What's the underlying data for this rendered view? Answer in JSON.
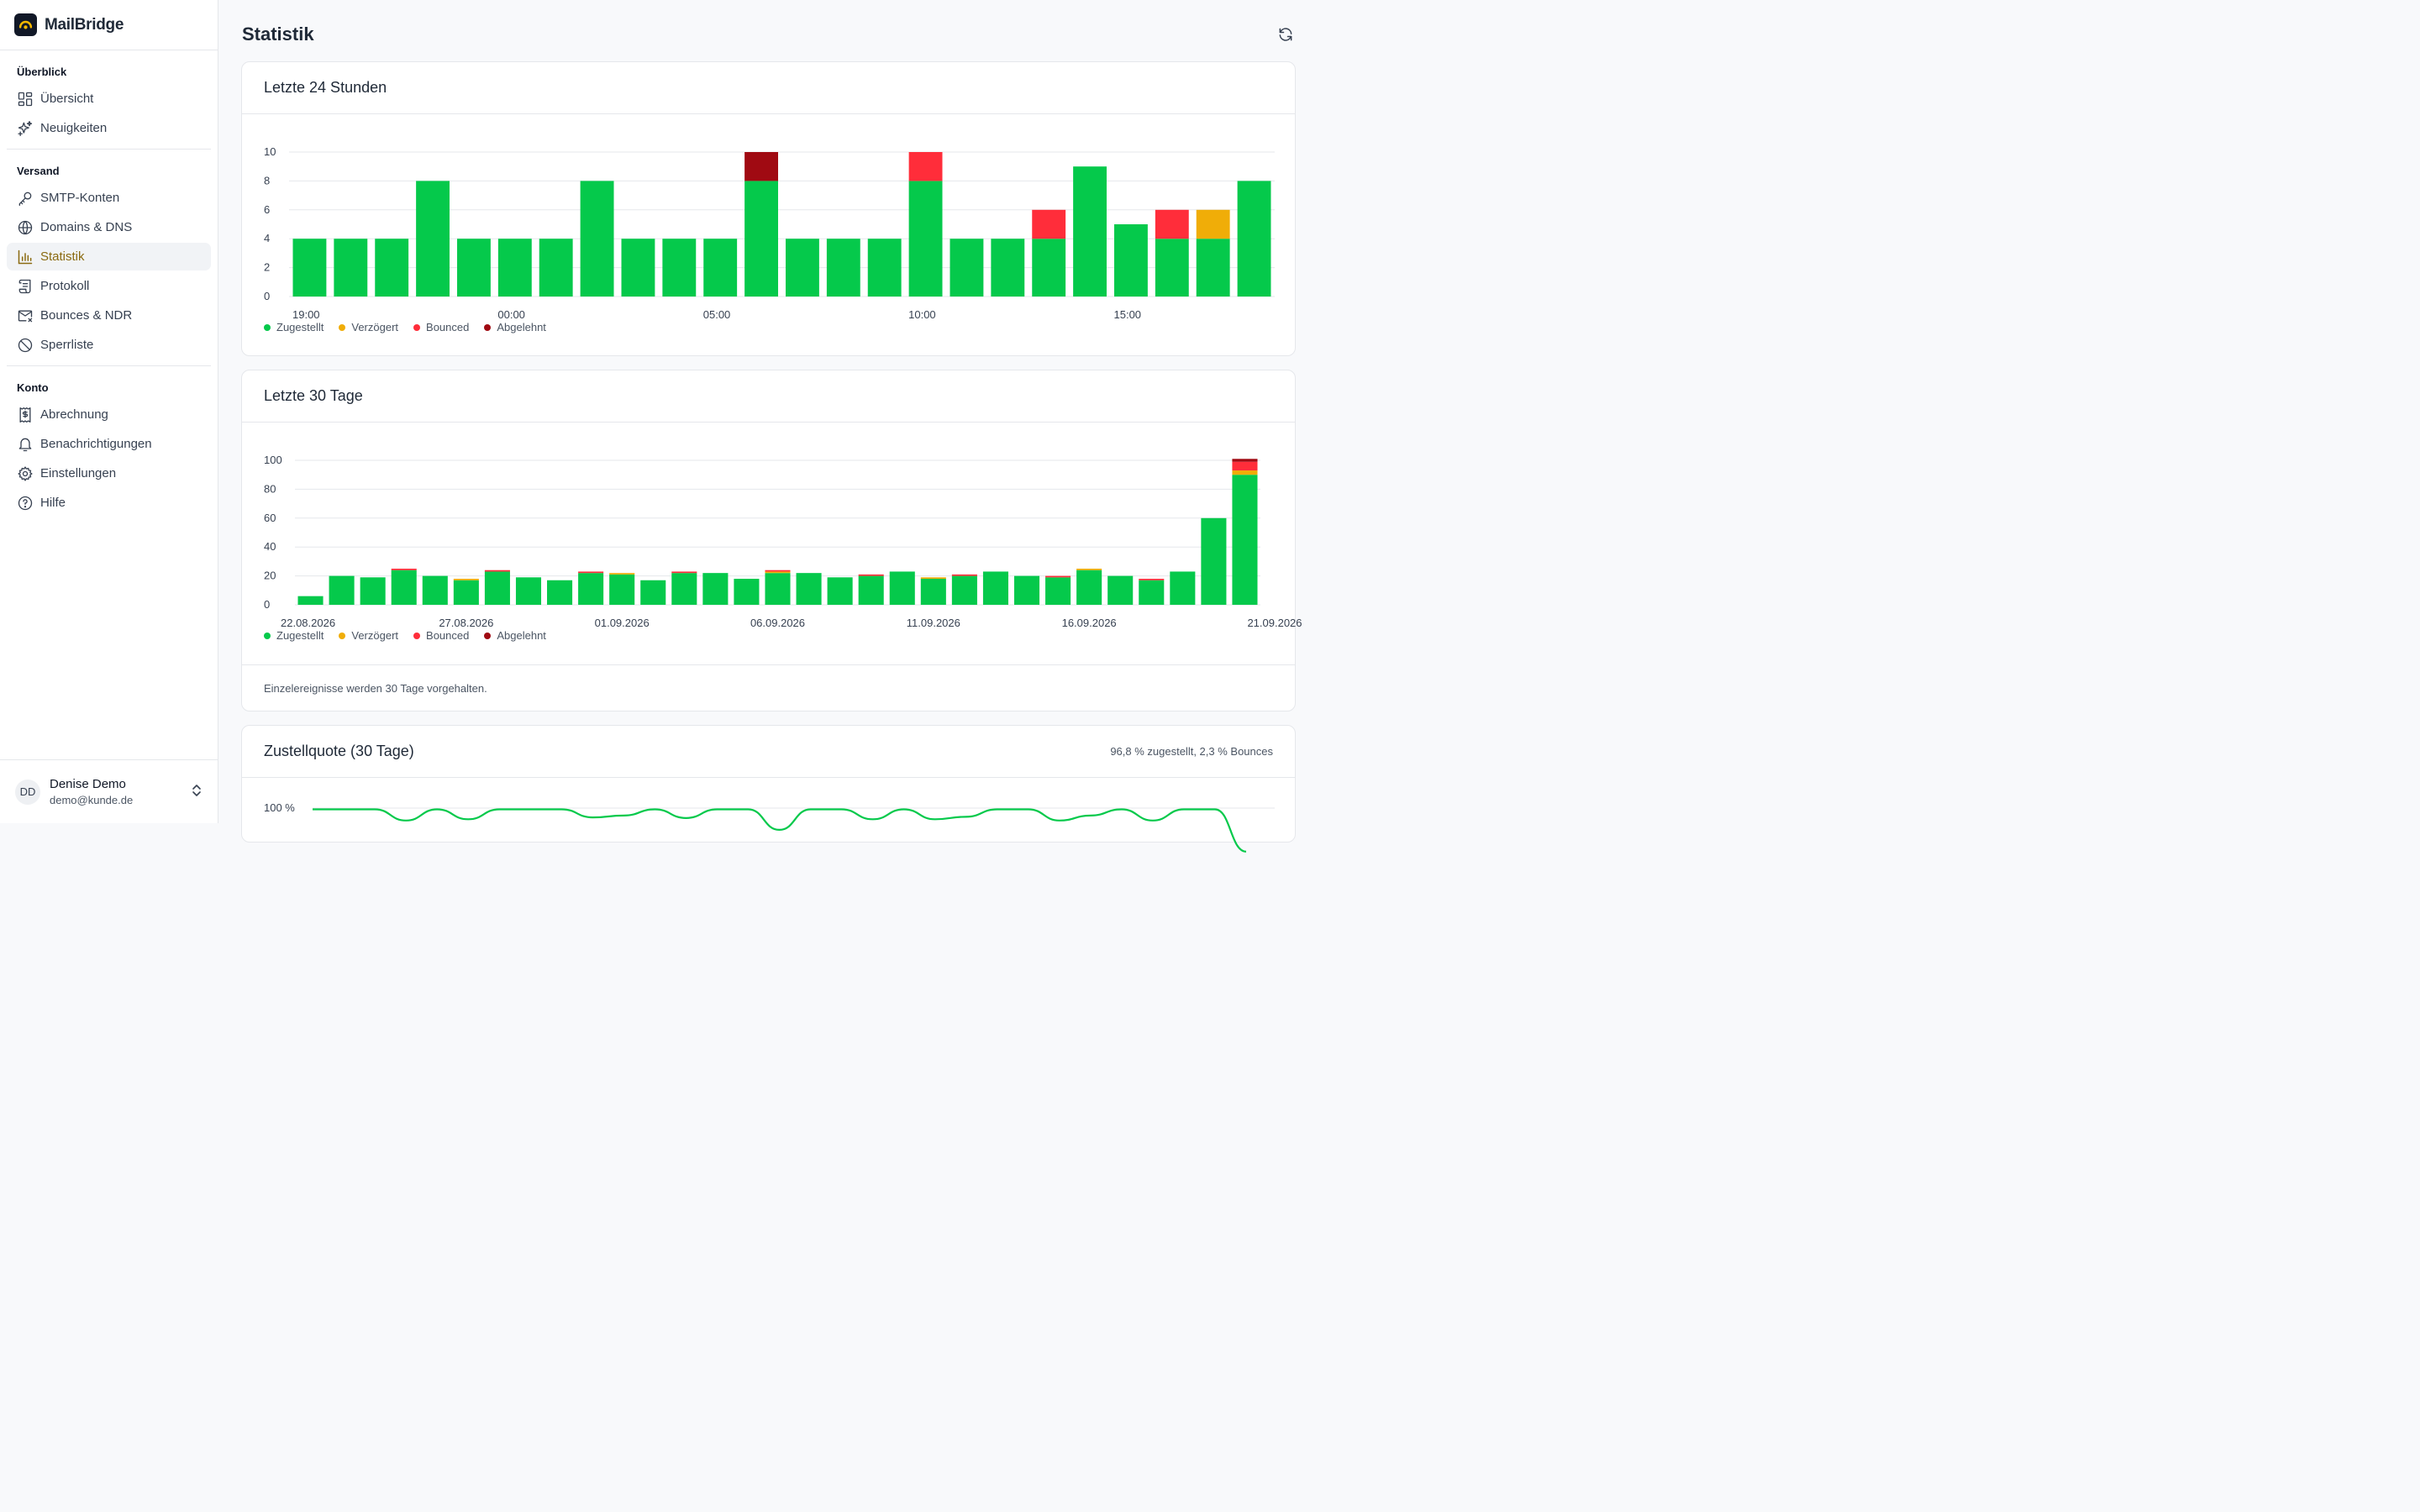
{
  "brand": {
    "name": "MailBridge"
  },
  "sidebar": {
    "sections": [
      {
        "heading": "Überblick",
        "items": [
          {
            "label": "Übersicht",
            "icon": "dashboard-icon"
          },
          {
            "label": "Neuigkeiten",
            "icon": "sparkles-icon"
          }
        ]
      },
      {
        "heading": "Versand",
        "items": [
          {
            "label": "SMTP-Konten",
            "icon": "key-icon"
          },
          {
            "label": "Domains & DNS",
            "icon": "globe-icon"
          },
          {
            "label": "Statistik",
            "icon": "bar-chart-icon",
            "active": true
          },
          {
            "label": "Protokoll",
            "icon": "scroll-icon"
          },
          {
            "label": "Bounces & NDR",
            "icon": "mail-x-icon"
          },
          {
            "label": "Sperrliste",
            "icon": "ban-icon"
          }
        ]
      },
      {
        "heading": "Konto",
        "items": [
          {
            "label": "Abrechnung",
            "icon": "receipt-icon"
          },
          {
            "label": "Benachrichtigungen",
            "icon": "bell-icon"
          },
          {
            "label": "Einstellungen",
            "icon": "gear-icon"
          },
          {
            "label": "Hilfe",
            "icon": "help-circle-icon"
          }
        ]
      }
    ]
  },
  "user": {
    "initials": "DD",
    "name": "Denise Demo",
    "email": "demo@kunde.de"
  },
  "page": {
    "title": "Statistik"
  },
  "colors": {
    "delivered": "#05c94b",
    "delayed": "#f0ad08",
    "bounced": "#ff2d3a",
    "rejected": "#a00a12",
    "accent": "#8a6a10"
  },
  "legend": [
    "Zugestellt",
    "Verzögert",
    "Bounced",
    "Abgelehnt"
  ],
  "cards": {
    "hourly": {
      "title": "Letzte 24 Stunden"
    },
    "daily": {
      "title": "Letzte 30 Tage",
      "footer": "Einzelereignisse werden 30 Tage vorgehalten."
    },
    "rate": {
      "title": "Zustellquote (30 Tage)",
      "summary": "96,8 % zugestellt, 2,3 % Bounces"
    }
  },
  "chart_data": [
    {
      "type": "bar",
      "stacked": true,
      "title": "Letzte 24 Stunden",
      "yticks": [
        0,
        2,
        4,
        6,
        8,
        10
      ],
      "ylim": [
        0,
        10
      ],
      "xtick_labels": [
        "19:00",
        "00:00",
        "05:00",
        "10:00",
        "15:00"
      ],
      "xtick_positions": [
        0,
        5,
        10,
        15,
        20
      ],
      "series": [
        {
          "name": "Zugestellt",
          "values": [
            4,
            4,
            4,
            8,
            4,
            4,
            4,
            8,
            4,
            4,
            4,
            8,
            4,
            4,
            4,
            8,
            4,
            4,
            4,
            9,
            5,
            4,
            4,
            8
          ]
        },
        {
          "name": "Verzögert",
          "values": [
            0,
            0,
            0,
            0,
            0,
            0,
            0,
            0,
            0,
            0,
            0,
            0,
            0,
            0,
            0,
            0,
            0,
            0,
            0,
            0,
            0,
            0,
            2,
            0
          ]
        },
        {
          "name": "Bounced",
          "values": [
            0,
            0,
            0,
            0,
            0,
            0,
            0,
            0,
            0,
            0,
            0,
            0,
            0,
            0,
            0,
            2,
            0,
            0,
            2,
            0,
            0,
            2,
            0,
            0
          ]
        },
        {
          "name": "Abgelehnt",
          "values": [
            0,
            0,
            0,
            0,
            0,
            0,
            0,
            0,
            0,
            0,
            0,
            2,
            0,
            0,
            0,
            0,
            0,
            0,
            0,
            0,
            0,
            0,
            0,
            0
          ]
        }
      ],
      "legend_position": "bottom-left",
      "grid": true
    },
    {
      "type": "bar",
      "stacked": true,
      "title": "Letzte 30 Tage",
      "yticks": [
        0,
        20,
        40,
        60,
        80,
        100
      ],
      "ylim": [
        0,
        100
      ],
      "xtick_labels": [
        "22.08.2026",
        "27.08.2026",
        "01.09.2026",
        "06.09.2026",
        "11.09.2026",
        "16.09.2026",
        "21.09.2026"
      ],
      "xtick_positions": [
        0,
        5,
        10,
        15,
        20,
        25,
        30
      ],
      "series": [
        {
          "name": "Zugestellt",
          "values": [
            6,
            20,
            19,
            24,
            20,
            17,
            23,
            19,
            17,
            22,
            21,
            17,
            22,
            22,
            18,
            22,
            22,
            19,
            20,
            23,
            18,
            20,
            23,
            20,
            19,
            24,
            20,
            17,
            23,
            60,
            90
          ]
        },
        {
          "name": "Verzögert",
          "values": [
            0,
            0,
            0,
            0,
            0,
            1,
            0,
            0,
            0,
            0,
            1,
            0,
            0,
            0,
            0,
            1,
            0,
            0,
            0,
            0,
            1,
            0,
            0,
            0,
            0,
            1,
            0,
            0,
            0,
            0,
            3
          ]
        },
        {
          "name": "Bounced",
          "values": [
            0,
            0,
            0,
            1,
            0,
            0,
            1,
            0,
            0,
            1,
            0,
            0,
            1,
            0,
            0,
            1,
            0,
            0,
            1,
            0,
            0,
            1,
            0,
            0,
            1,
            0,
            0,
            1,
            0,
            0,
            6
          ]
        },
        {
          "name": "Abgelehnt",
          "values": [
            0,
            0,
            0,
            0,
            0,
            0,
            0,
            0,
            0,
            0,
            0,
            0,
            0,
            0,
            0,
            0,
            0,
            0,
            0,
            0,
            0,
            0,
            0,
            0,
            0,
            0,
            0,
            0,
            0,
            0,
            2
          ]
        }
      ],
      "legend_position": "bottom-left",
      "grid": true
    },
    {
      "type": "line",
      "title": "Zustellquote (30 Tage)",
      "ytick_labels": [
        "100 %"
      ],
      "ylim": [
        90,
        100
      ],
      "series": [
        {
          "name": "Zugestellt",
          "values": [
            99.8,
            99.8,
            99.8,
            98.0,
            99.8,
            98.2,
            99.8,
            99.8,
            99.8,
            98.5,
            98.8,
            99.8,
            98.4,
            99.8,
            99.8,
            96.5,
            99.8,
            99.8,
            98.2,
            99.8,
            98.2,
            98.6,
            99.8,
            99.8,
            98.0,
            98.8,
            99.8,
            98.0,
            99.8,
            99.8,
            93.0
          ]
        }
      ]
    }
  ]
}
